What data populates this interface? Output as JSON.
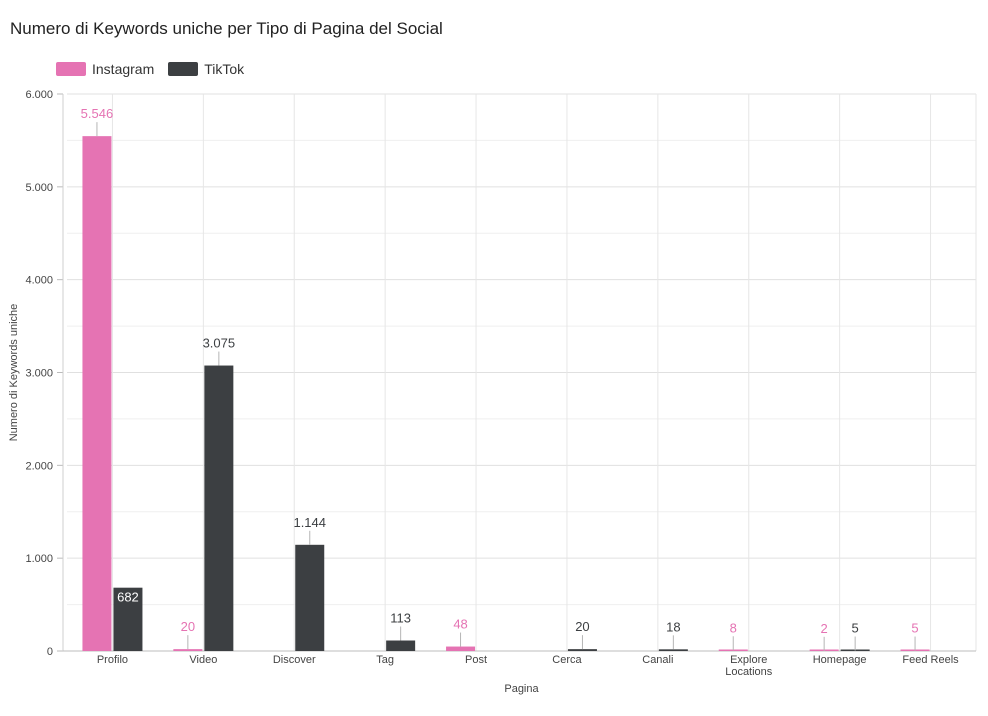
{
  "title": "Numero di Keywords uniche per Tipo di Pagina del Social",
  "legend": {
    "items": [
      {
        "label": "Instagram",
        "color": "#e573b3"
      },
      {
        "label": "TikTok",
        "color": "#3c3f42"
      }
    ]
  },
  "chart_data": {
    "type": "bar",
    "title": "Numero di Keywords uniche per Tipo di Pagina del Social",
    "xlabel": "Pagina",
    "ylabel": "Numero di Keywords uniche",
    "ylim": [
      0,
      6000
    ],
    "yticks": [
      "0",
      "1.000",
      "2.000",
      "3.000",
      "4.000",
      "5.000",
      "6.000"
    ],
    "grid": true,
    "legend_position": "top-left",
    "categories": [
      "Profilo",
      "Video",
      "Discover",
      "Tag",
      "Post",
      "Cerca",
      "Canali",
      "Explore Locations",
      "Homepage",
      "Feed Reels"
    ],
    "category_lines": [
      [
        "Profilo"
      ],
      [
        "Video"
      ],
      [
        "Discover"
      ],
      [
        "Tag"
      ],
      [
        "Post"
      ],
      [
        "Cerca"
      ],
      [
        "Canali"
      ],
      [
        "Explore",
        "Locations"
      ],
      [
        "Homepage"
      ],
      [
        "Feed Reels"
      ]
    ],
    "series": [
      {
        "name": "Instagram",
        "color": "#e573b3",
        "values": [
          5546,
          20,
          null,
          null,
          48,
          null,
          null,
          8,
          2,
          5
        ],
        "labels": [
          "5.546",
          "20",
          "",
          "",
          "48",
          "",
          "",
          "8",
          "2",
          "5"
        ]
      },
      {
        "name": "TikTok",
        "color": "#3c3f42",
        "values": [
          682,
          3075,
          1144,
          113,
          null,
          20,
          18,
          null,
          5,
          null
        ],
        "labels": [
          "682",
          "3.075",
          "1.144",
          "113",
          "",
          "20",
          "18",
          "",
          "5",
          ""
        ]
      }
    ]
  }
}
